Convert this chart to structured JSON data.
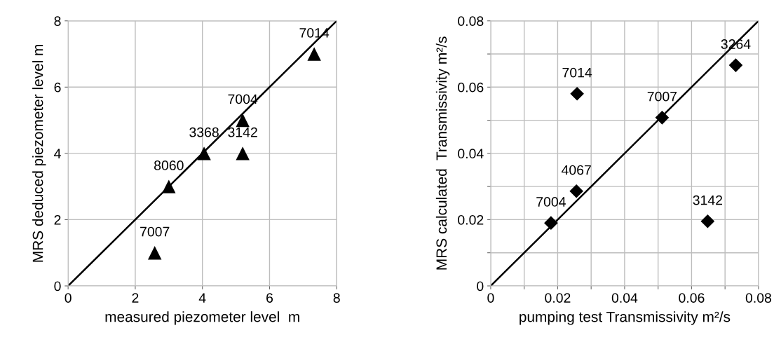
{
  "chart_data": [
    {
      "type": "scatter",
      "xlabel": "measured piezometer level  m",
      "ylabel": "MRS deduced piezometer level m",
      "xlim": [
        0,
        8
      ],
      "ylim": [
        0,
        8
      ],
      "xticks": [
        0,
        2,
        4,
        6,
        8
      ],
      "yticks": [
        0,
        2,
        4,
        6,
        8
      ],
      "grid": true,
      "series": [
        {
          "color": "#000000",
          "marker": "triangle",
          "x": [
            2.58,
            3.0,
            4.05,
            5.2,
            5.2,
            7.33
          ],
          "values": [
            1,
            3,
            4,
            4,
            5,
            7
          ]
        },
        {
          "type": "line",
          "color": "#000000",
          "marker": "none",
          "x": [
            0,
            8
          ],
          "values": [
            0,
            8
          ]
        }
      ],
      "annotations": [
        {
          "text": "7007",
          "x": 2.58,
          "y": 1
        },
        {
          "text": "8060",
          "x": 3.0,
          "y": 3
        },
        {
          "text": "3368",
          "x": 4.05,
          "y": 4
        },
        {
          "text": "3142",
          "x": 5.2,
          "y": 4
        },
        {
          "text": "7004",
          "x": 5.2,
          "y": 5
        },
        {
          "text": "7014",
          "x": 7.33,
          "y": 7
        }
      ]
    },
    {
      "type": "scatter",
      "xlabel": "pumping test Transmissivity m²/s",
      "ylabel": "MRS calculated  Transmissivity m²/s",
      "xlim": [
        0,
        0.08
      ],
      "ylim": [
        0,
        0.08
      ],
      "xticks": [
        0,
        {
          "value": 0.01,
          "label": null
        },
        0.02,
        {
          "value": 0.03,
          "label": null
        },
        0.04,
        {
          "value": 0.05,
          "label": null
        },
        0.06,
        {
          "value": 0.07,
          "label": null
        },
        0.08
      ],
      "yticks": [
        0,
        {
          "value": 0.01,
          "label": null
        },
        0.02,
        {
          "value": 0.03,
          "label": null
        },
        0.04,
        {
          "value": 0.05,
          "label": null
        },
        0.06,
        {
          "value": 0.07,
          "label": null
        },
        0.08
      ],
      "grid": true,
      "series": [
        {
          "color": "#000000",
          "marker": "diamond",
          "x": [
            0.018,
            0.0256,
            0.0258,
            0.0512,
            0.0648,
            0.0732
          ],
          "values": [
            0.019,
            0.0286,
            0.058,
            0.0508,
            0.0195,
            0.0666
          ]
        },
        {
          "type": "line",
          "color": "#000000",
          "marker": "none",
          "x": [
            0,
            0.08
          ],
          "values": [
            0,
            0.08
          ]
        }
      ],
      "annotations": [
        {
          "text": "7004",
          "x": 0.018,
          "y": 0.019
        },
        {
          "text": "4067",
          "x": 0.0256,
          "y": 0.0286
        },
        {
          "text": "7014",
          "x": 0.0258,
          "y": 0.058
        },
        {
          "text": "7007",
          "x": 0.0512,
          "y": 0.0508
        },
        {
          "text": "3142",
          "x": 0.0648,
          "y": 0.0195
        },
        {
          "text": "3264",
          "x": 0.0732,
          "y": 0.0666
        }
      ]
    }
  ]
}
